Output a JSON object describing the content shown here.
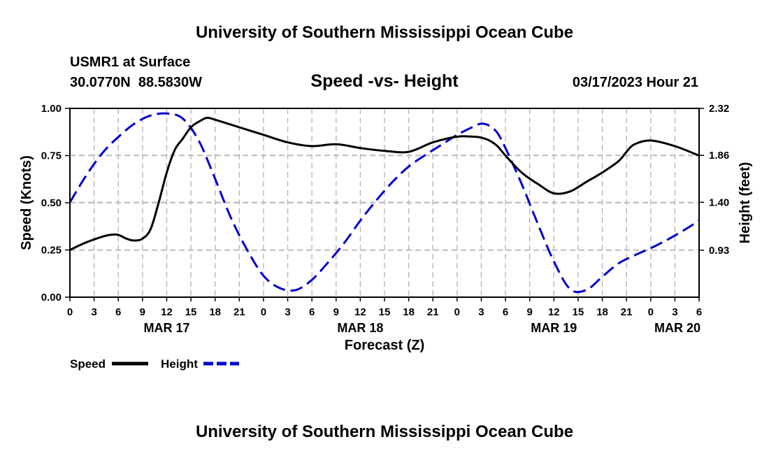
{
  "page": {
    "header_title": "University of Southern Mississippi Ocean Cube",
    "footer_title": "University of Southern Mississippi Ocean Cube"
  },
  "station": {
    "name": "USMR1 at Surface",
    "coords": "30.0770N  88.5830W",
    "date": "03/17/2023 Hour 21"
  },
  "legend": {
    "speed_label": "Speed",
    "height_label": "Height"
  },
  "colors": {
    "speed": "#000000",
    "height": "#0000cc",
    "grid": "#b8b8b8"
  },
  "chart_data": {
    "type": "line",
    "title": "Speed -vs- Height",
    "xlabel": "Forecast (Z)",
    "ylabel": "Speed (Knots)",
    "y2label": "Height (feet)",
    "x_unit": "hours from MAR 17 00Z",
    "xlim": [
      0,
      78
    ],
    "ylim": [
      0,
      1
    ],
    "y2lim": [
      0.47,
      2.32
    ],
    "x_ticks": [
      0,
      3,
      6,
      9,
      12,
      15,
      18,
      21,
      24,
      27,
      30,
      33,
      36,
      39,
      42,
      45,
      48,
      51,
      54,
      57,
      60,
      63,
      66,
      69,
      72,
      75,
      78
    ],
    "x_tick_labels": [
      "0",
      "3",
      "6",
      "9",
      "12",
      "15",
      "18",
      "21",
      "0",
      "3",
      "6",
      "9",
      "12",
      "15",
      "18",
      "21",
      "0",
      "3",
      "6",
      "9",
      "12",
      "15",
      "18",
      "21",
      "0",
      "3",
      "6"
    ],
    "y_ticks": [
      0,
      0.25,
      0.5,
      0.75,
      1.0
    ],
    "y_tick_labels": [
      "0.00",
      "0.25",
      "0.50",
      "0.75",
      "1.00"
    ],
    "y2_ticks": [
      0.93,
      1.4,
      1.86,
      2.32
    ],
    "y2_tick_labels": [
      "0.93",
      "1.40",
      "1.86",
      "2.32"
    ],
    "day_labels": [
      {
        "x": 12,
        "label": "MAR 17"
      },
      {
        "x": 36,
        "label": "MAR 18"
      },
      {
        "x": 60,
        "label": "MAR 19"
      },
      {
        "x": 78,
        "label": "MAR 20"
      }
    ],
    "series": [
      {
        "name": "Speed",
        "axis": "left",
        "style": "solid",
        "x": [
          0,
          2,
          4,
          5,
          6,
          7,
          8,
          9,
          10,
          11,
          12,
          13,
          14,
          15,
          16,
          17,
          18,
          21,
          24,
          27,
          30,
          33,
          36,
          39,
          42,
          45,
          48,
          50,
          51,
          52,
          53,
          54,
          56,
          58,
          60,
          62,
          64,
          66,
          68,
          69,
          70,
          72,
          75,
          78
        ],
        "values": [
          0.25,
          0.29,
          0.32,
          0.33,
          0.33,
          0.31,
          0.3,
          0.31,
          0.36,
          0.5,
          0.66,
          0.78,
          0.84,
          0.9,
          0.93,
          0.95,
          0.94,
          0.9,
          0.86,
          0.82,
          0.8,
          0.81,
          0.79,
          0.775,
          0.77,
          0.82,
          0.85,
          0.85,
          0.845,
          0.83,
          0.8,
          0.75,
          0.66,
          0.6,
          0.55,
          0.56,
          0.61,
          0.66,
          0.72,
          0.77,
          0.81,
          0.83,
          0.8,
          0.75
        ]
      },
      {
        "name": "Height",
        "axis": "right",
        "style": "dashed",
        "x": [
          0,
          2,
          4,
          6,
          8,
          10,
          12,
          14,
          16,
          18,
          20,
          22,
          24,
          26,
          28,
          30,
          32,
          34,
          36,
          38,
          40,
          42,
          44,
          46,
          48,
          50,
          51,
          52,
          53,
          54,
          56,
          58,
          60,
          62,
          64,
          66,
          68,
          70,
          72,
          74,
          76,
          78
        ],
        "values": [
          1.4,
          1.66,
          1.88,
          2.04,
          2.17,
          2.25,
          2.27,
          2.22,
          2.0,
          1.63,
          1.24,
          0.93,
          0.68,
          0.56,
          0.54,
          0.64,
          0.81,
          1.0,
          1.22,
          1.42,
          1.6,
          1.75,
          1.86,
          1.96,
          2.06,
          2.14,
          2.17,
          2.15,
          2.08,
          1.93,
          1.58,
          1.19,
          0.82,
          0.55,
          0.54,
          0.67,
          0.8,
          0.88,
          0.95,
          1.03,
          1.12,
          1.22
        ]
      }
    ]
  }
}
